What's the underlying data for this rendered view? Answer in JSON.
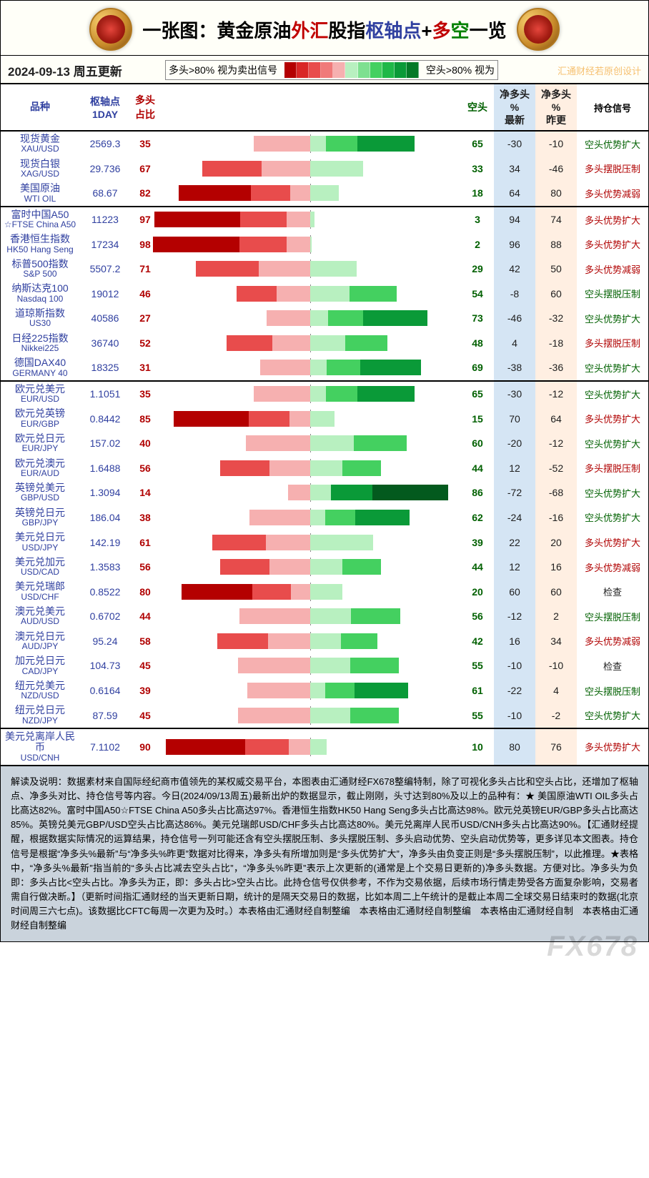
{
  "title_parts": {
    "p1": "一张图：",
    "p2": "黄金原油",
    "p3": "外汇",
    "p4": "股指",
    "p5": "枢轴点",
    "p6": "+",
    "p7": "多",
    "p8": "空",
    "p9": "一览"
  },
  "date": "2024-09-13",
  "weekday": "周五更新",
  "legend": {
    "left": "多头>80% 视为卖出信号",
    "right": "空头>80% 视为"
  },
  "watermark_top": "汇通财经若原创设计",
  "watermark_bottom": "FX678",
  "scale_colors": [
    "#b40000",
    "#d92626",
    "#e84c4c",
    "#f07a7a",
    "#f6b0b0",
    "#b8f0c0",
    "#7ee090",
    "#44d060",
    "#1fb848",
    "#0a9a38",
    "#047a28"
  ],
  "signal_color": {
    "long": "#b00000",
    "short": "#006000",
    "check": "#202020"
  },
  "headers": {
    "name": "品种",
    "pivot": "枢轴点\n1DAY",
    "long": "多头\n占比",
    "short": "空头",
    "net": "净多头\n%\n最新",
    "prev": "净多头\n%\n昨更",
    "signal": "持仓信号"
  },
  "groups": [
    {
      "rows": [
        {
          "cn": "现货黄金",
          "en": "XAU/USD",
          "pivot": "2569.3",
          "long": 35,
          "short": 65,
          "net": -30,
          "prev": -10,
          "signal": "空头优势扩大",
          "sig": "short"
        },
        {
          "cn": "现货白银",
          "en": "XAG/USD",
          "pivot": "29.736",
          "long": 67,
          "short": 33,
          "net": 34,
          "prev": -46,
          "signal": "多头摆脱压制",
          "sig": "long"
        },
        {
          "cn": "美国原油",
          "en": "WTI OIL",
          "pivot": "68.67",
          "long": 82,
          "short": 18,
          "net": 64,
          "prev": 80,
          "signal": "多头优势减弱",
          "sig": "long"
        }
      ]
    },
    {
      "rows": [
        {
          "cn": "富时中国A50",
          "en": "☆FTSE China A50",
          "pivot": "11223",
          "long": 97,
          "short": 3,
          "net": 94,
          "prev": 74,
          "signal": "多头优势扩大",
          "sig": "long"
        },
        {
          "cn": "香港恒生指数",
          "en": "HK50 Hang Seng",
          "pivot": "17234",
          "long": 98,
          "short": 2,
          "net": 96,
          "prev": 88,
          "signal": "多头优势扩大",
          "sig": "long"
        },
        {
          "cn": "标普500指数",
          "en": "S&P 500",
          "pivot": "5507.2",
          "long": 71,
          "short": 29,
          "net": 42,
          "prev": 50,
          "signal": "多头优势减弱",
          "sig": "long"
        },
        {
          "cn": "纳斯达克100",
          "en": "Nasdaq 100",
          "pivot": "19012",
          "long": 46,
          "short": 54,
          "net": -8,
          "prev": 60,
          "signal": "空头摆脱压制",
          "sig": "short"
        },
        {
          "cn": "道琼斯指数",
          "en": "US30",
          "pivot": "40586",
          "long": 27,
          "short": 73,
          "net": -46,
          "prev": -32,
          "signal": "空头优势扩大",
          "sig": "short"
        },
        {
          "cn": "日经225指数",
          "en": "Nikkei225",
          "pivot": "36740",
          "long": 52,
          "short": 48,
          "net": 4,
          "prev": -18,
          "signal": "多头摆脱压制",
          "sig": "long"
        },
        {
          "cn": "德国DAX40",
          "en": "GERMANY 40",
          "pivot": "18325",
          "long": 31,
          "short": 69,
          "net": -38,
          "prev": -36,
          "signal": "空头优势扩大",
          "sig": "short"
        }
      ]
    },
    {
      "rows": [
        {
          "cn": "欧元兑美元",
          "en": "EUR/USD",
          "pivot": "1.1051",
          "long": 35,
          "short": 65,
          "net": -30,
          "prev": -12,
          "signal": "空头优势扩大",
          "sig": "short"
        },
        {
          "cn": "欧元兑英镑",
          "en": "EUR/GBP",
          "pivot": "0.8442",
          "long": 85,
          "short": 15,
          "net": 70,
          "prev": 64,
          "signal": "多头优势扩大",
          "sig": "long"
        },
        {
          "cn": "欧元兑日元",
          "en": "EUR/JPY",
          "pivot": "157.02",
          "long": 40,
          "short": 60,
          "net": -20,
          "prev": -12,
          "signal": "空头优势扩大",
          "sig": "short"
        },
        {
          "cn": "欧元兑澳元",
          "en": "EUR/AUD",
          "pivot": "1.6488",
          "long": 56,
          "short": 44,
          "net": 12,
          "prev": -52,
          "signal": "多头摆脱压制",
          "sig": "long"
        },
        {
          "cn": "英镑兑美元",
          "en": "GBP/USD",
          "pivot": "1.3094",
          "long": 14,
          "short": 86,
          "net": -72,
          "prev": -68,
          "signal": "空头优势扩大",
          "sig": "short"
        },
        {
          "cn": "英镑兑日元",
          "en": "GBP/JPY",
          "pivot": "186.04",
          "long": 38,
          "short": 62,
          "net": -24,
          "prev": -16,
          "signal": "空头优势扩大",
          "sig": "short"
        },
        {
          "cn": "美元兑日元",
          "en": "USD/JPY",
          "pivot": "142.19",
          "long": 61,
          "short": 39,
          "net": 22,
          "prev": 20,
          "signal": "多头优势扩大",
          "sig": "long"
        },
        {
          "cn": "美元兑加元",
          "en": "USD/CAD",
          "pivot": "1.3583",
          "long": 56,
          "short": 44,
          "net": 12,
          "prev": 16,
          "signal": "多头优势减弱",
          "sig": "long"
        },
        {
          "cn": "美元兑瑞郎",
          "en": "USD/CHF",
          "pivot": "0.8522",
          "long": 80,
          "short": 20,
          "net": 60,
          "prev": 60,
          "signal": "检查",
          "sig": "check"
        },
        {
          "cn": "澳元兑美元",
          "en": "AUD/USD",
          "pivot": "0.6702",
          "long": 44,
          "short": 56,
          "net": -12,
          "prev": 2,
          "signal": "空头摆脱压制",
          "sig": "short"
        },
        {
          "cn": "澳元兑日元",
          "en": "AUD/JPY",
          "pivot": "95.24",
          "long": 58,
          "short": 42,
          "net": 16,
          "prev": 34,
          "signal": "多头优势减弱",
          "sig": "long"
        },
        {
          "cn": "加元兑日元",
          "en": "CAD/JPY",
          "pivot": "104.73",
          "long": 45,
          "short": 55,
          "net": -10,
          "prev": -10,
          "signal": "检查",
          "sig": "check"
        },
        {
          "cn": "纽元兑美元",
          "en": "NZD/USD",
          "pivot": "0.6164",
          "long": 39,
          "short": 61,
          "net": -22,
          "prev": 4,
          "signal": "空头摆脱压制",
          "sig": "short"
        },
        {
          "cn": "纽元兑日元",
          "en": "NZD/JPY",
          "pivot": "87.59",
          "long": 45,
          "short": 55,
          "net": -10,
          "prev": -2,
          "signal": "空头优势扩大",
          "sig": "short"
        }
      ]
    },
    {
      "rows": [
        {
          "cn": "美元兑离岸人民币",
          "en": "USD/CNH",
          "pivot": "7.1102",
          "long": 90,
          "short": 10,
          "net": 80,
          "prev": 76,
          "signal": "多头优势扩大",
          "sig": "long"
        }
      ]
    }
  ],
  "bar_style": {
    "half_width": 225,
    "red_bands": [
      "#b40000",
      "#e84c4c",
      "#f6b0b0"
    ],
    "green_bands": [
      "#b8f0c0",
      "#44d060",
      "#0a9a38",
      "#035a1e"
    ]
  },
  "notes": "解读及说明：数据素材来自国际经纪商市值领先的某权威交易平台，本图表由汇通财经FX678整编特制，除了可视化多头占比和空头占比，还增加了枢轴点、净多头对比、持仓信号等内容。今日(2024/09/13周五)最新出炉的数据显示，截止刚刚，头寸达到80%及以上的品种有：★ 美国原油WTI OIL多头占比高达82%。富时中国A50☆FTSE China A50多头占比高达97%。香港恒生指数HK50 Hang Seng多头占比高达98%。欧元兑英镑EUR/GBP多头占比高达85%。英镑兑美元GBP/USD空头占比高达86%。美元兑瑞郎USD/CHF多头占比高达80%。美元兑离岸人民币USD/CNH多头占比高达90%。【汇通财经提醒，根据数据实际情况的运算结果，持仓信号一列可能还含有空头摆脱压制、多头摆脱压制、多头启动优势、空头启动优势等，更多详见本文图表。持仓信号是根据“净多头%最新”与“净多头%昨更”数据对比得来，净多头有所增加则是“多头优势扩大”，净多头由负变正则是“多头摆脱压制”，以此推理。★表格中，“净多头%最新”指当前的“多头占比减去空头占比”，“净多头%昨更”表示上次更新的(通常是上个交易日更新的)净多头数据。方便对比。净多头为负 即：多头占比<空头占比。净多头为正，即：多头占比>空头占比。此持仓信号仅供参考，不作为交易依据，后续市场行情走势受各方面复杂影响，交易者需自行做决断。】（更新时间指汇通财经的当天更新日期，统计的是隔天交易日的数据，比如本周二上午统计的是截止本周二全球交易日结束时的数据(北京时间周三六七点)。该数据比CFTC每周一次更为及时。）本表格由汇通财经自制整编　本表格由汇通财经自制整编　本表格由汇通财经自制　本表格由汇通财经自制整编"
}
